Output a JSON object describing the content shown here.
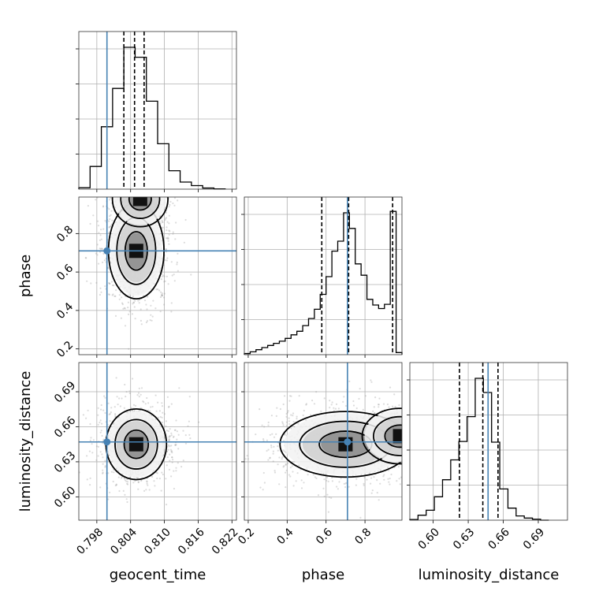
{
  "chart_data": {
    "type": "corner",
    "parameters": [
      "geocent_time",
      "phase",
      "luminosity_distance"
    ],
    "truths": {
      "geocent_time": 0.7998,
      "phase": 0.71,
      "luminosity_distance": 0.647
    },
    "colors": {
      "truth": "#4682b4",
      "histogram": "#000000",
      "grid": "#b0b0b0"
    },
    "panels": [
      {
        "id": "hist-geocent_time",
        "kind": "hist1d",
        "x_param": "geocent_time",
        "xlim": [
          0.7948,
          0.8228
        ],
        "bin_edges": [
          0.7948,
          0.7968,
          0.7988,
          0.8008,
          0.8028,
          0.8048,
          0.8068,
          0.8088,
          0.8108,
          0.8128,
          0.8148,
          0.8168,
          0.8188,
          0.8208
        ],
        "counts": [
          0.01,
          0.16,
          0.44,
          0.71,
          1.0,
          0.93,
          0.62,
          0.32,
          0.13,
          0.05,
          0.025,
          0.008,
          0.002
        ],
        "quantiles": [
          0.8028,
          0.8047,
          0.8064
        ],
        "truth_x": 0.7998
      },
      {
        "id": "hist-phase",
        "kind": "hist1d",
        "x_param": "phase",
        "xlim": [
          0.18,
          0.99
        ],
        "bin_edges": [
          0.18,
          0.21,
          0.24,
          0.27,
          0.3,
          0.33,
          0.36,
          0.39,
          0.42,
          0.45,
          0.48,
          0.51,
          0.54,
          0.57,
          0.6,
          0.63,
          0.66,
          0.69,
          0.72,
          0.75,
          0.78,
          0.81,
          0.84,
          0.87,
          0.9,
          0.93,
          0.96,
          0.99
        ],
        "counts": [
          0.008,
          0.02,
          0.035,
          0.05,
          0.065,
          0.08,
          0.095,
          0.115,
          0.14,
          0.165,
          0.205,
          0.255,
          0.32,
          0.425,
          0.55,
          0.73,
          0.8,
          1.0,
          0.89,
          0.64,
          0.56,
          0.39,
          0.35,
          0.325,
          0.355,
          1.01,
          0.015
        ],
        "quantiles": [
          0.578,
          0.716,
          0.942
        ],
        "truth_x": 0.71
      },
      {
        "id": "hist-luminosity_distance",
        "kind": "hist1d",
        "x_param": "luminosity_distance",
        "xlim": [
          0.58,
          0.715
        ],
        "bin_edges": [
          0.58,
          0.587,
          0.594,
          0.601,
          0.608,
          0.615,
          0.622,
          0.629,
          0.636,
          0.643,
          0.65,
          0.657,
          0.664,
          0.671,
          0.678,
          0.685,
          0.692,
          0.699
        ],
        "counts": [
          0.005,
          0.035,
          0.07,
          0.165,
          0.285,
          0.425,
          0.555,
          0.73,
          1.0,
          0.9,
          0.55,
          0.22,
          0.085,
          0.03,
          0.015,
          0.007,
          0.0
        ],
        "quantiles": [
          0.6225,
          0.6425,
          0.6555
        ],
        "truth_x": 0.647
      },
      {
        "id": "scatter-geocent_time-phase",
        "kind": "hist2d",
        "x_param": "geocent_time",
        "y_param": "phase",
        "xlim": [
          0.7948,
          0.8228
        ],
        "ylim": [
          0.17,
          0.99
        ],
        "truth": [
          0.7998,
          0.71
        ],
        "density_peaks": [
          {
            "x": 0.805,
            "y": 0.71
          },
          {
            "x": 0.8057,
            "y": 0.98
          }
        ]
      },
      {
        "id": "scatter-geocent_time-luminosity_distance",
        "kind": "hist2d",
        "x_param": "geocent_time",
        "y_param": "luminosity_distance",
        "xlim": [
          0.7948,
          0.8228
        ],
        "ylim": [
          0.58,
          0.715
        ],
        "truth": [
          0.7998,
          0.647
        ],
        "density_peaks": [
          {
            "x": 0.805,
            "y": 0.645
          }
        ]
      },
      {
        "id": "scatter-phase-luminosity_distance",
        "kind": "hist2d",
        "x_param": "phase",
        "y_param": "luminosity_distance",
        "xlim": [
          0.18,
          0.99
        ],
        "ylim": [
          0.58,
          0.715
        ],
        "truth": [
          0.71,
          0.647
        ],
        "density_peaks": [
          {
            "x": 0.7,
            "y": 0.645
          },
          {
            "x": 0.98,
            "y": 0.652
          }
        ]
      }
    ],
    "ticks": {
      "geocent_time": {
        "values": [
          0.798,
          0.804,
          0.81,
          0.816,
          0.822
        ],
        "labels": [
          "0.798",
          "0.804",
          "0.810",
          "0.816",
          "0.822"
        ]
      },
      "phase": {
        "values": [
          0.2,
          0.4,
          0.6,
          0.8
        ],
        "labels": [
          "0.2",
          "0.4",
          "0.6",
          "0.8"
        ]
      },
      "luminosity_distance": {
        "values": [
          0.6,
          0.63,
          0.66,
          0.69
        ],
        "labels": [
          "0.60",
          "0.63",
          "0.66",
          "0.69"
        ]
      }
    },
    "axis_labels": {
      "geocent_time": "geocent_time",
      "phase": "phase",
      "luminosity_distance": "luminosity_distance"
    }
  }
}
